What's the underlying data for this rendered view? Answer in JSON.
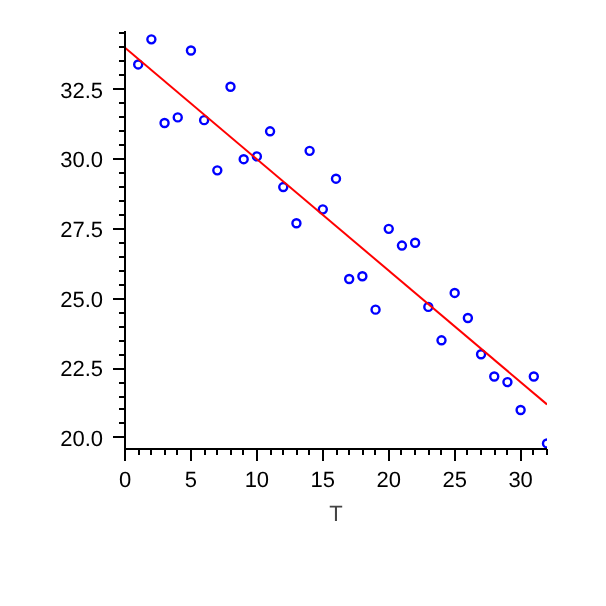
{
  "chart_data": {
    "type": "scatter",
    "xlabel": "T",
    "xlim": [
      0,
      32
    ],
    "ylim": [
      19.6,
      34.6
    ],
    "xticks": [
      0,
      5,
      10,
      15,
      20,
      25,
      30
    ],
    "yticks": [
      {
        "value": 20,
        "label": "20.0"
      },
      {
        "value": 22.5,
        "label": "22.5"
      },
      {
        "value": 25,
        "label": "25.0"
      },
      {
        "value": 27.5,
        "label": "27.5"
      },
      {
        "value": 30,
        "label": "30.0"
      },
      {
        "value": 32.5,
        "label": "32.5"
      }
    ],
    "grid": false,
    "series": [
      {
        "marker": "circle",
        "color": "#0000ff",
        "x": [
          1,
          2,
          3,
          4,
          5,
          6,
          7,
          8,
          9,
          10,
          11,
          12,
          13,
          14,
          15,
          16,
          17,
          18,
          19,
          20,
          21,
          22,
          23,
          24,
          25,
          26,
          27,
          28,
          29,
          30,
          31,
          32
        ],
        "values": [
          33.4,
          34.3,
          31.3,
          31.5,
          33.9,
          31.4,
          29.6,
          32.6,
          30.0,
          30.1,
          31.0,
          29.0,
          27.7,
          30.3,
          28.2,
          29.3,
          25.7,
          25.8,
          24.6,
          27.5,
          26.9,
          27.0,
          24.7,
          23.5,
          25.2,
          24.3,
          23.0,
          22.2,
          22.0,
          21.0,
          22.2,
          19.8
        ]
      },
      {
        "type": "line",
        "marker": "none",
        "color": "#ff0000",
        "x": [
          0,
          32
        ],
        "values": [
          34.0,
          21.2
        ]
      }
    ]
  }
}
